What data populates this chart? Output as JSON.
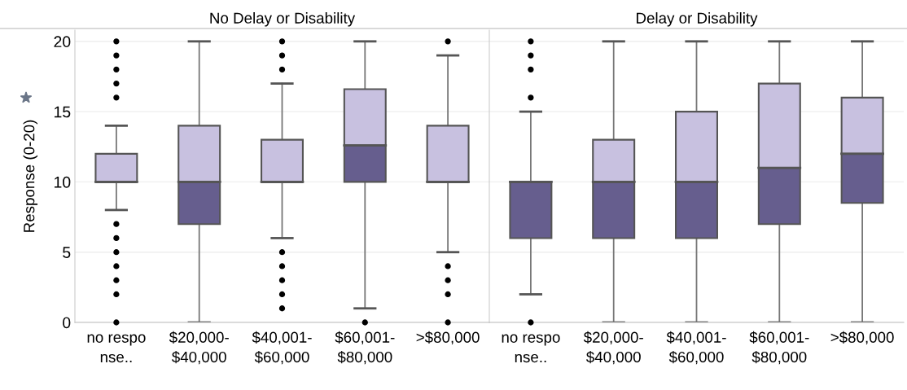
{
  "chart_data": [
    {
      "type": "box",
      "title": "No Delay or Disability",
      "ylabel": "Response (0-20)",
      "categories": [
        "no respo\nnse..",
        "$20,000-\n$40,000",
        "$40,001-\n$60,000",
        "$60,001-\n$80,000",
        ">$80,000"
      ],
      "boxes": [
        {
          "low": 8,
          "q1": 10,
          "median": 10,
          "q3": 12,
          "high": 14,
          "outliers": [
            20,
            19,
            18,
            17,
            16,
            7,
            6,
            5,
            4,
            3,
            2,
            0
          ]
        },
        {
          "low": 0,
          "q1": 7,
          "median": 10,
          "q3": 14,
          "high": 20
        },
        {
          "low": 6,
          "q1": 10,
          "median": 10,
          "q3": 13,
          "high": 17,
          "outliers": [
            20,
            19,
            18,
            5,
            4,
            3,
            2,
            1
          ]
        },
        {
          "low": 1,
          "q1": 10,
          "median": 12.6,
          "q3": 16.6,
          "high": 20,
          "outliers": [
            0
          ]
        },
        {
          "low": 5,
          "q1": 10,
          "median": 10,
          "q3": 14,
          "high": 19,
          "outliers": [
            20,
            4,
            3,
            2,
            0
          ]
        }
      ],
      "colors": [
        [
          "#665e8e",
          "#c8c1e0"
        ],
        [
          "#665e8e",
          "#c8c1e0"
        ],
        [
          "#665e8e",
          "#c8c1e0"
        ],
        [
          "#665e8e",
          "#c8c1e0"
        ],
        [
          "#665e8e",
          "#c8c1e0"
        ]
      ],
      "ylim": [
        0,
        20.8
      ],
      "yticks": [
        0,
        5,
        10,
        15,
        20
      ],
      "grid": "y"
    },
    {
      "type": "box",
      "title": "Delay or Disability",
      "categories": [
        "no respo\nnse..",
        "$20,000-\n$40,000",
        "$40,001-\n$60,000",
        "$60,001-\n$80,000",
        ">$80,000"
      ],
      "boxes": [
        {
          "low": 2,
          "q1": 6,
          "median": 10,
          "q3": 10,
          "high": 15,
          "outliers": [
            20,
            19,
            18,
            16,
            0
          ]
        },
        {
          "low": 0,
          "q1": 6,
          "median": 10,
          "q3": 13,
          "high": 20
        },
        {
          "low": 0,
          "q1": 6,
          "median": 10,
          "q3": 15,
          "high": 20
        },
        {
          "low": 0,
          "q1": 7,
          "median": 11,
          "q3": 17,
          "high": 20
        },
        {
          "low": 0,
          "q1": 8.5,
          "median": 12,
          "q3": 16,
          "high": 20
        }
      ],
      "colors": [
        [
          "#665e8e",
          "#c8c1e0"
        ],
        [
          "#665e8e",
          "#c8c1e0"
        ],
        [
          "#665e8e",
          "#c8c1e0"
        ],
        [
          "#665e8e",
          "#c8c1e0"
        ],
        [
          "#665e8e",
          "#c8c1e0"
        ]
      ],
      "ylim": [
        0,
        20.8
      ],
      "yticks": [
        0,
        5,
        10,
        15,
        20
      ],
      "grid": "y",
      "tick_labels": "x"
    }
  ]
}
